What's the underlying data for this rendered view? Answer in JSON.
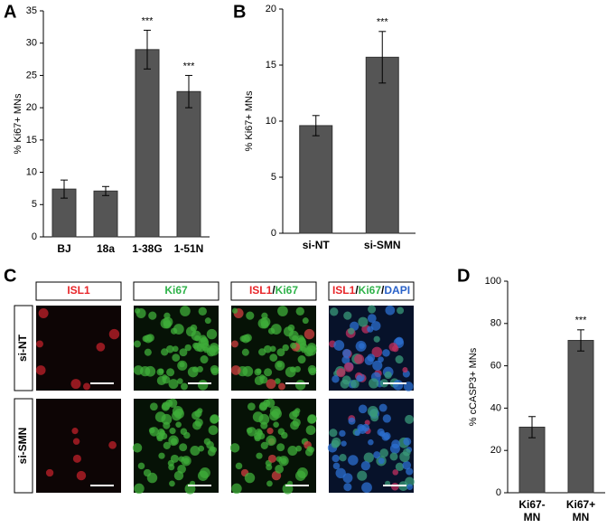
{
  "panels": [
    "A",
    "B",
    "C",
    "D"
  ],
  "chart_data": [
    {
      "type": "bar",
      "ylabel": "% Ki67+ MNs",
      "categories": [
        "BJ",
        "18a",
        "1-38G",
        "1-51N"
      ],
      "values": [
        7.4,
        7.1,
        29,
        22.5
      ],
      "errors": [
        1.4,
        0.7,
        3,
        2.5
      ],
      "annotations": [
        null,
        null,
        "***",
        "***"
      ],
      "color": "#555555",
      "ylim": [
        0,
        35
      ],
      "yticks": [
        0,
        5,
        10,
        15,
        20,
        25,
        30,
        35
      ]
    },
    {
      "type": "bar",
      "ylabel": "% Ki67+ MNs",
      "categories": [
        "si-NT",
        "si-SMN"
      ],
      "values": [
        9.6,
        15.7
      ],
      "errors": [
        0.9,
        2.3
      ],
      "annotations": [
        null,
        "***"
      ],
      "color": "#555555",
      "ylim": [
        0,
        20
      ],
      "yticks": [
        0,
        5,
        10,
        15,
        20
      ]
    },
    {
      "type": "bar",
      "ylabel": "% cCASP3+ MNs",
      "categories": [
        "Ki67- MN",
        "Ki67+ MN"
      ],
      "values": [
        31,
        72
      ],
      "errors": [
        5,
        5
      ],
      "annotations": [
        null,
        "***"
      ],
      "color": "#555555",
      "ylim": [
        0,
        100
      ],
      "yticks": [
        0,
        20,
        40,
        60,
        80,
        100
      ]
    }
  ],
  "microscopy": {
    "columns": [
      [
        {
          "text": "ISL1",
          "color": "#e8262a"
        }
      ],
      [
        {
          "text": "Ki67",
          "color": "#2fb34a"
        }
      ],
      [
        {
          "text": "ISL1",
          "color": "#e8262a"
        },
        {
          "text": "/",
          "color": "#000000"
        },
        {
          "text": "Ki67",
          "color": "#2fb34a"
        }
      ],
      [
        {
          "text": "ISL1",
          "color": "#e8262a"
        },
        {
          "text": "/",
          "color": "#000000"
        },
        {
          "text": "Ki67",
          "color": "#2fb34a"
        },
        {
          "text": "/",
          "color": "#000000"
        },
        {
          "text": "DAPI",
          "color": "#2a62c9"
        }
      ]
    ],
    "rows": [
      "si-NT",
      "si-SMN"
    ]
  }
}
